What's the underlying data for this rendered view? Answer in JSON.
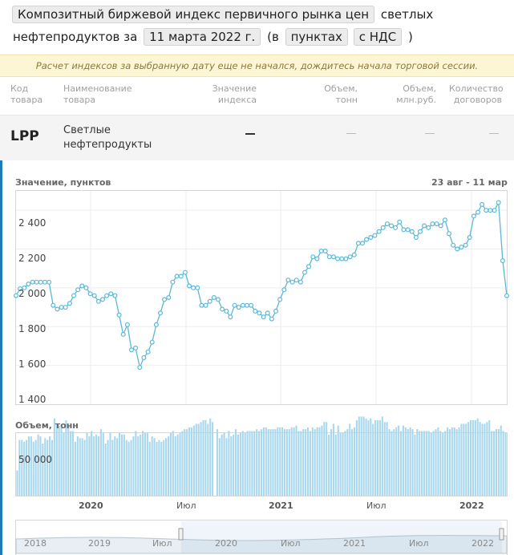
{
  "header": {
    "index_chip": "Композитный биржевой индекс первичного рынка цен",
    "title_tail": "светлых",
    "line2_prefix": "нефтепродуктов за",
    "date_chip": "11 марта 2022 г.",
    "paren_open": "(в",
    "unit_chip": "пунктах",
    "vat_chip": "с НДС",
    "paren_close": ")"
  },
  "notice": "Расчет индексов за выбранную дату еще не начался, дождитесь начала торговой сессии.",
  "table": {
    "columns": [
      [
        "Код",
        "товара"
      ],
      [
        "Наименование",
        "товара"
      ],
      [
        "Значение",
        "индекса"
      ],
      [
        "Объем,",
        "тонн"
      ],
      [
        "Объем,",
        "млн.руб."
      ],
      [
        "Количество",
        "договоров"
      ]
    ],
    "row": {
      "code": "LPP",
      "name_line1": "Светлые",
      "name_line2": "нефтепродукты"
    }
  },
  "chart": {
    "value_title": "Значение, пунктов",
    "range": "23 авг - 11 мар",
    "volume_title": "Объем, тонн",
    "y_ticks": [
      "2 400",
      "2 200",
      "2 000",
      "1 800",
      "1 600",
      "1 400"
    ],
    "vol_tick": "50 000",
    "x_labels": [
      "2020",
      "Июл",
      "2021",
      "Июл",
      "2022"
    ],
    "nav_labels": [
      "2018",
      "2019",
      "Июл",
      "2020",
      "Июл",
      "2021",
      "Июл",
      "2022"
    ],
    "colors": {
      "line": "#5bb8d6",
      "marker_fill": "#ffffff",
      "bar": "#a9d8ee",
      "strip": "#1f7ab8"
    }
  },
  "chart_data": {
    "type": "line",
    "title": "Значение, пунктов",
    "ylim": [
      1400,
      2500
    ],
    "x_range": [
      "2019-08-23",
      "2022-03-11"
    ],
    "series": [
      {
        "values": [
          1960,
          1995,
          2000,
          2020,
          2030,
          2030,
          2030,
          2030,
          2030,
          1910,
          1890,
          1900,
          1900,
          1920,
          1960,
          1990,
          2010,
          2000,
          1970,
          1960,
          1930,
          1940,
          1960,
          1970,
          1960,
          1860,
          1760,
          1810,
          1680,
          1690,
          1590,
          1640,
          1670,
          1720,
          1810,
          1870,
          1940,
          1950,
          2030,
          2060,
          2060,
          2080,
          2010,
          2000,
          2000,
          1910,
          1910,
          1930,
          1950,
          1940,
          1890,
          1880,
          1850,
          1910,
          1900,
          1910,
          1910,
          1910,
          1880,
          1870,
          1850,
          1870,
          1840,
          1880,
          1940,
          1990,
          2040,
          2030,
          2040,
          2030,
          2080,
          2110,
          2160,
          2150,
          2190,
          2190,
          2160,
          2160,
          2150,
          2150,
          2150,
          2160,
          2170,
          2230,
          2230,
          2250,
          2260,
          2270,
          2290,
          2310,
          2330,
          2320,
          2310,
          2340,
          2300,
          2300,
          2290,
          2260,
          2290,
          2320,
          2310,
          2330,
          2330,
          2320,
          2350,
          2280,
          2220,
          2200,
          2210,
          2220,
          2260,
          2370,
          2390,
          2430,
          2400,
          2400,
          2400,
          2440,
          2140,
          1960
        ]
      }
    ]
  },
  "volume_data": {
    "type": "bar",
    "title": "Объем, тонн",
    "values": [
      28000,
      62000,
      62000,
      60000,
      62000,
      66000,
      66000,
      60000,
      62000,
      68000,
      66000,
      58000,
      64000,
      62000,
      66000,
      62000,
      86000,
      80000,
      78000,
      76000,
      70000,
      84000,
      78000,
      72000,
      72000,
      60000,
      66000,
      64000,
      64000,
      62000,
      70000,
      66000,
      72000,
      66000,
      68000,
      66000,
      74000,
      70000,
      58000,
      62000,
      70000,
      62000,
      66000,
      64000,
      70000,
      68000,
      68000,
      62000,
      60000,
      62000,
      66000,
      72000,
      66000,
      68000,
      72000,
      70000,
      70000,
      60000,
      66000,
      64000,
      60000,
      62000,
      60000,
      62000,
      64000,
      66000,
      70000,
      72000,
      66000,
      68000,
      70000,
      72000,
      74000,
      74000,
      76000,
      76000,
      78000,
      80000,
      80000,
      82000,
      84000,
      84000,
      80000,
      86000,
      82000,
      0,
      74000,
      64000,
      68000,
      70000,
      64000,
      72000,
      66000,
      68000,
      74000,
      68000,
      70000,
      72000,
      70000,
      72000,
      72000,
      72000,
      72000,
      74000,
      72000,
      74000,
      76000,
      76000,
      74000,
      74000,
      74000,
      74000,
      76000,
      76000,
      76000,
      74000,
      74000,
      74000,
      76000,
      76000,
      78000,
      72000,
      72000,
      74000,
      74000,
      76000,
      72000,
      76000,
      74000,
      76000,
      76000,
      78000,
      82000,
      82000,
      68000,
      74000,
      80000,
      68000,
      78000,
      70000,
      70000,
      72000,
      74000,
      80000,
      74000,
      76000,
      84000,
      88000,
      88000,
      88000,
      86000,
      84000,
      86000,
      80000,
      84000,
      84000,
      84000,
      88000,
      82000,
      82000,
      74000,
      72000,
      74000,
      76000,
      78000,
      72000,
      78000,
      76000,
      74000,
      76000,
      74000,
      68000,
      74000,
      72000,
      72000,
      72000,
      72000,
      72000,
      70000,
      72000,
      74000,
      76000,
      72000,
      70000,
      72000,
      76000,
      74000,
      76000,
      76000,
      74000,
      76000,
      80000,
      80000,
      80000,
      82000,
      84000,
      84000,
      84000,
      86000,
      82000,
      80000,
      80000,
      82000,
      84000,
      72000,
      72000,
      74000,
      74000,
      78000,
      72000,
      70000
    ]
  }
}
